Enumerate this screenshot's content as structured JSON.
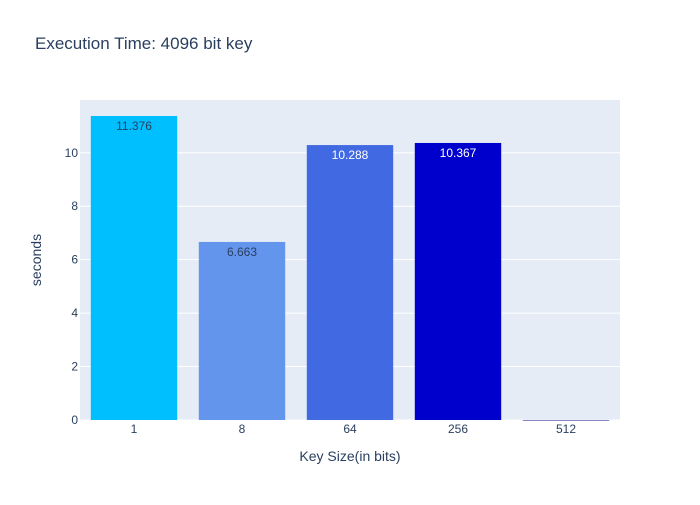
{
  "chart_data": {
    "type": "bar",
    "title": "Execution Time: 4096 bit key",
    "xlabel": "Key Size(in bits)",
    "ylabel": "seconds",
    "categories": [
      "1",
      "8",
      "64",
      "256",
      "512"
    ],
    "values": [
      11.376,
      6.663,
      10.288,
      10.367,
      0.001
    ],
    "data_labels": [
      "11.376",
      "6.663",
      "10.288",
      "10.367",
      ""
    ],
    "bar_colors": [
      "#00bfff",
      "#6495ed",
      "#4169e1",
      "#0000cd",
      "#00008b"
    ],
    "label_colors": [
      "#2a3f5f",
      "#2a3f5f",
      "#ffffff",
      "#ffffff",
      "#ffffff"
    ],
    "ylim": [
      0,
      11.376
    ],
    "yticks": [
      0,
      2,
      4,
      6,
      8,
      10
    ],
    "grid": true,
    "plot_background": "#e5ecf6",
    "legend": "none"
  }
}
